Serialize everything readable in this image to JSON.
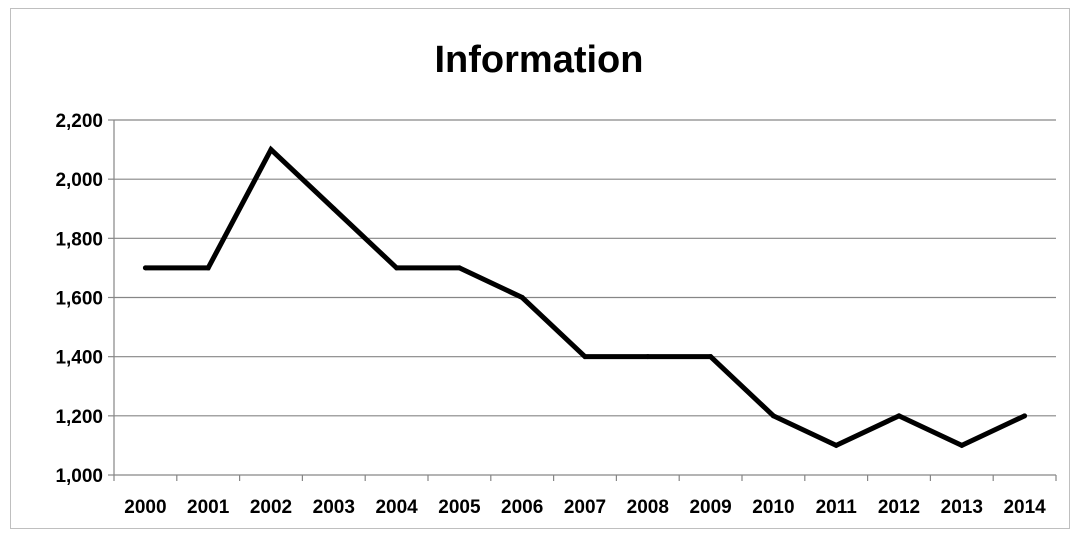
{
  "chart_data": {
    "type": "line",
    "title": "Information",
    "xlabel": "",
    "ylabel": "",
    "categories": [
      "2000",
      "2001",
      "2002",
      "2003",
      "2004",
      "2005",
      "2006",
      "2007",
      "2008",
      "2009",
      "2010",
      "2011",
      "2012",
      "2013",
      "2014"
    ],
    "series": [
      {
        "values": [
          1700,
          1700,
          2100,
          1900,
          1700,
          1700,
          1600,
          1400,
          1400,
          1400,
          1200,
          1100,
          1200,
          1100,
          1200
        ],
        "color": "#000000"
      }
    ],
    "ylim": [
      1000,
      2200
    ],
    "yticks": [
      1000,
      1200,
      1400,
      1600,
      1800,
      2000,
      2200
    ],
    "ytick_labels": [
      "1,000",
      "1,200",
      "1,400",
      "1,600",
      "1,800",
      "2,000",
      "2,200"
    ],
    "grid": true,
    "legend": "none"
  }
}
